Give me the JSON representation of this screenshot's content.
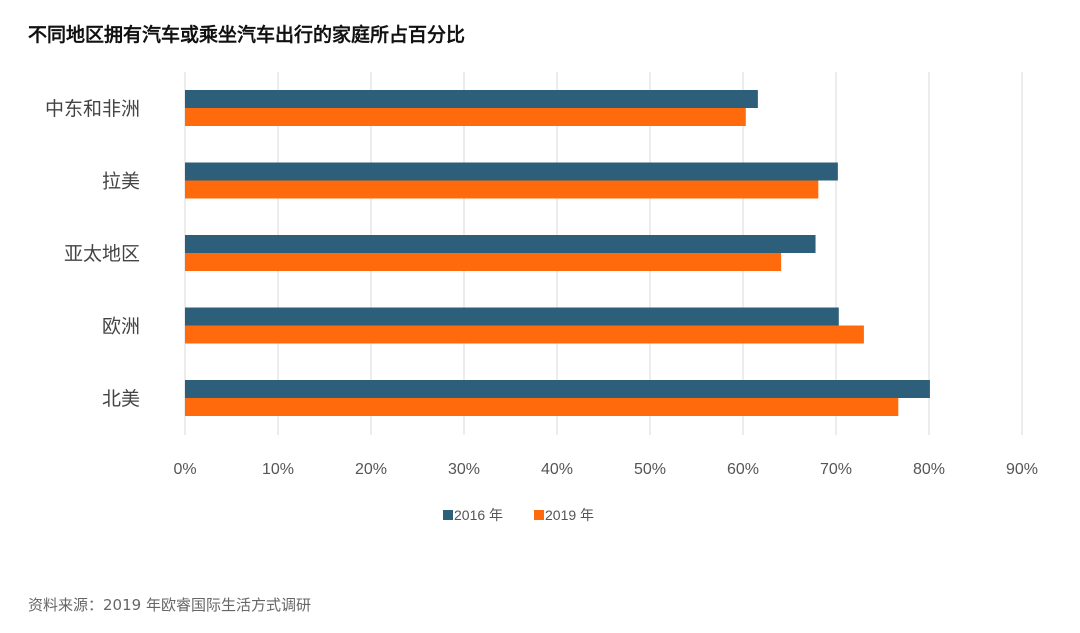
{
  "chart_data": {
    "type": "bar",
    "orientation": "horizontal",
    "title": "不同地区拥有汽车或乘坐汽车出行的家庭所占百分比",
    "categories": [
      "中东和非洲",
      "拉美",
      "亚太地区",
      "欧洲",
      "北美"
    ],
    "series": [
      {
        "name": "2016 年",
        "color": "#2e5f7a",
        "values": [
          61.6,
          70.2,
          67.8,
          70.3,
          80.1
        ]
      },
      {
        "name": "2019 年",
        "color": "#ff6a0d",
        "values": [
          60.3,
          68.1,
          64.1,
          73.0,
          76.7
        ]
      }
    ],
    "xlim": [
      0,
      90
    ],
    "xticks": [
      "0%",
      "10%",
      "20%",
      "30%",
      "40%",
      "50%",
      "60%",
      "70%",
      "80%",
      "90%"
    ],
    "grid": true,
    "legend": "bottom",
    "source": "资料来源：2019 年欧睿国际生活方式调研"
  }
}
